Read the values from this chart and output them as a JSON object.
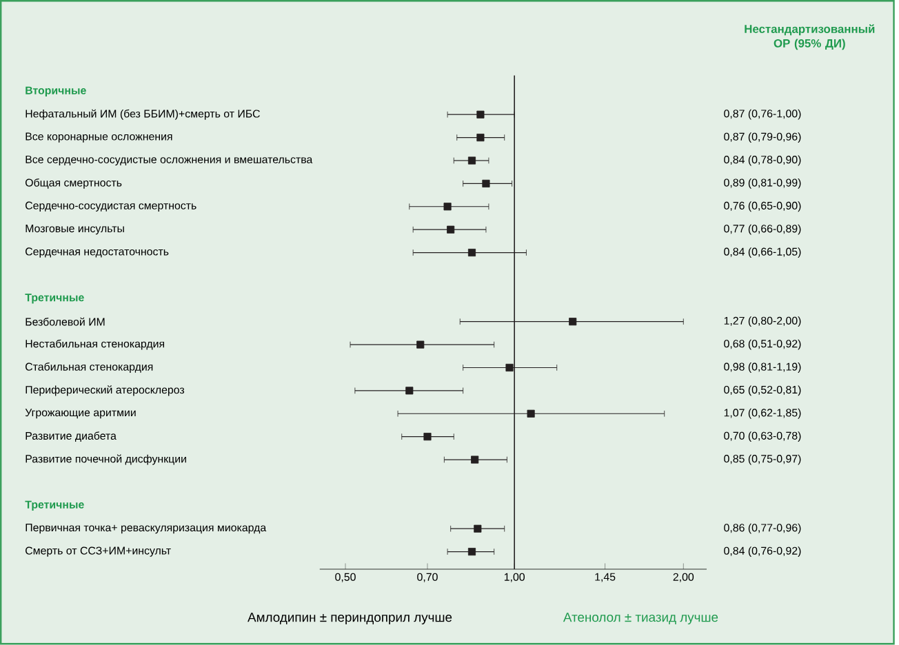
{
  "chart_data": {
    "type": "scatter",
    "orientation": "horizontal",
    "log": "x",
    "marker": "square",
    "color": "#231f20",
    "categories": [
      "Вторичные",
      "Нефатальный ИМ (без ББИМ)+смерть от ИБС",
      "Все коронарные осложнения",
      "Все сердечно-сосудистые осложнения и вмешательства",
      "Общая смертность",
      "Сердечно-сосудистая смертность",
      "Мозговые инсульты",
      "Сердечная недостаточность",
      null,
      "Третичные",
      "Безболевой ИМ",
      "Нестабильная стенокардия",
      "Стабильная стенокардия",
      "Периферический атеросклероз",
      "Угрожающие аритмии",
      "Развитие диабета",
      "Развитие почечной дисфункции",
      null,
      "Третичные",
      "Первичная точка+ реваскуляризация миокарда",
      "Смерть от ССЗ+ИМ+инсульт"
    ],
    "values": [
      null,
      0.87,
      0.87,
      0.84,
      0.89,
      0.76,
      0.77,
      0.84,
      null,
      null,
      1.27,
      0.68,
      0.98,
      0.65,
      1.07,
      0.7,
      0.85,
      null,
      null,
      0.86,
      0.84
    ],
    "errors": [
      null,
      [
        0.76,
        1.0
      ],
      [
        0.79,
        0.96
      ],
      [
        0.78,
        0.9
      ],
      [
        0.81,
        0.99
      ],
      [
        0.65,
        0.9
      ],
      [
        0.66,
        0.89
      ],
      [
        0.66,
        1.05
      ],
      null,
      null,
      [
        0.8,
        2.0
      ],
      [
        0.51,
        0.92
      ],
      [
        0.81,
        1.19
      ],
      [
        0.52,
        0.81
      ],
      [
        0.62,
        1.85
      ],
      [
        0.63,
        0.78
      ],
      [
        0.75,
        0.97
      ],
      null,
      null,
      [
        0.77,
        0.96
      ],
      [
        0.76,
        0.92
      ]
    ],
    "value_labels": [
      null,
      "0,87 (0,76-1,00)",
      "0,87 (0,79-0,96)",
      "0,84 (0,78-0,90)",
      "0,89 (0,81-0,99)",
      "0,76 (0,65-0,90)",
      "0,77 (0,66-0,89)",
      "0,84 (0,66-1,05)",
      null,
      null,
      "1,27 (0,80-2,00)",
      "0,68 (0,51-0,92)",
      "0,98 (0,81-1,19)",
      "0,65 (0,52-0,81)",
      "1,07 (0,62-1,85)",
      "0,70 (0,63-0,78)",
      "0,85 (0,75-0,97)",
      null,
      null,
      "0,86 (0,77-0,96)",
      "0,84 (0,76-0,92)"
    ],
    "xlim": [
      0.45,
      2.2
    ],
    "xticks": [
      {
        "value": 0.5,
        "label": "0,50"
      },
      {
        "value": 0.7,
        "label": "0,70"
      },
      {
        "value": 1.0,
        "label": "1,00"
      },
      {
        "value": 1.45,
        "label": "1,45"
      },
      {
        "value": 2.0,
        "label": "2,00"
      }
    ],
    "ref_lines": [
      {
        "axis": "x",
        "value": 1.0,
        "color": "#231f20"
      }
    ],
    "annotations": [
      "Нестандартизованный ОР (95% ДИ)",
      "Амлодипин ± периндоприл лучше",
      "Атенолол ± тиазид лучше"
    ]
  }
}
